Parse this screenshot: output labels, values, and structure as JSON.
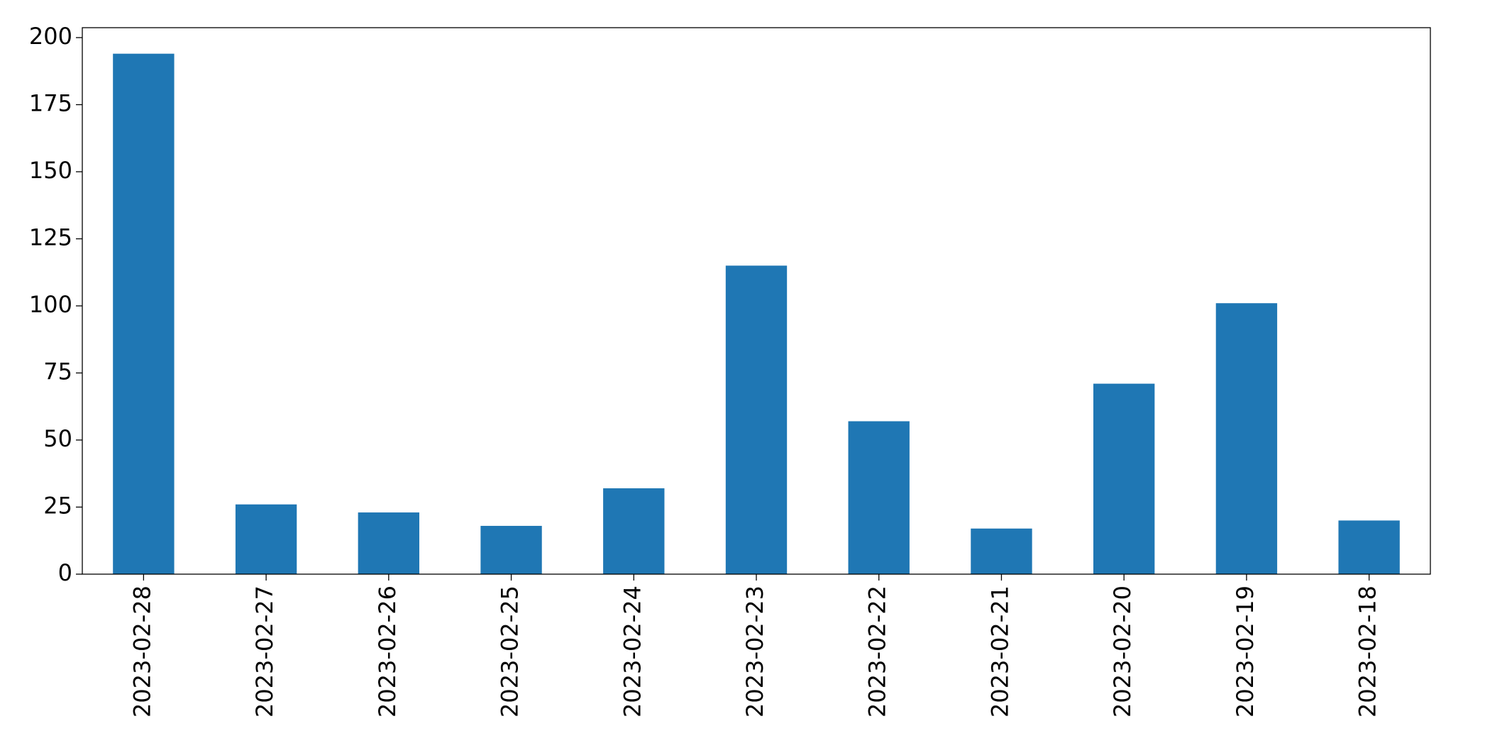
{
  "chart_data": {
    "type": "bar",
    "categories": [
      "2023-02-28",
      "2023-02-27",
      "2023-02-26",
      "2023-02-25",
      "2023-02-24",
      "2023-02-23",
      "2023-02-22",
      "2023-02-21",
      "2023-02-20",
      "2023-02-19",
      "2023-02-18"
    ],
    "values": [
      194,
      26,
      23,
      18,
      32,
      115,
      57,
      17,
      71,
      101,
      20
    ],
    "color": "#1f77b4",
    "ylim": [
      0,
      203.7
    ],
    "yticks": [
      0,
      25,
      50,
      75,
      100,
      125,
      150,
      175,
      200
    ],
    "grid": false
  }
}
